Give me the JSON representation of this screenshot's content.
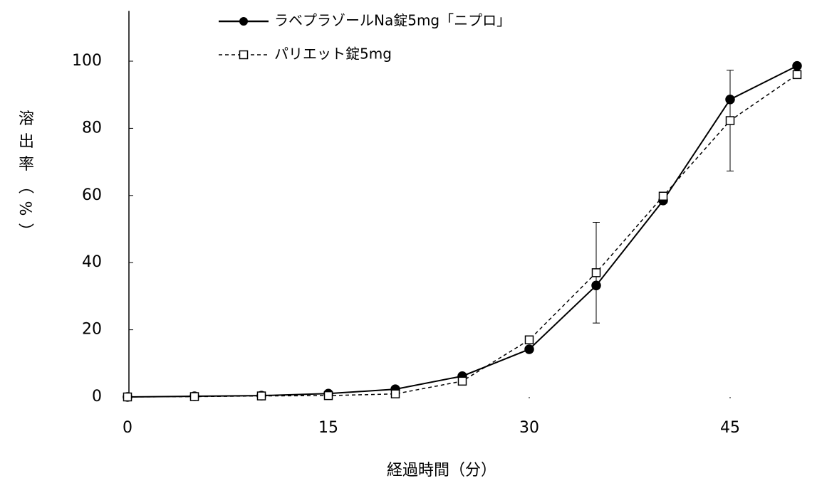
{
  "chart_data": {
    "type": "line",
    "x_label": "経過時間（分）",
    "y_label": "溶出率（%）",
    "x": [
      0,
      5,
      10,
      15,
      20,
      25,
      30,
      35,
      40,
      45,
      50
    ],
    "series": [
      {
        "name": "ラベプラゾールNa錠5mg「ニプロ」",
        "color": "#000000",
        "marker": "circle",
        "dash": false,
        "values": [
          0,
          0.2,
          0.4,
          1,
          2.3,
          6.2,
          14.2,
          33.2,
          58.5,
          88.6,
          98.6
        ]
      },
      {
        "name": "パリエット錠5mg",
        "color": "#000000",
        "marker": "square",
        "dash": true,
        "values": [
          0,
          0.1,
          0.3,
          0.4,
          0.9,
          4.7,
          17,
          37,
          59.8,
          82.3,
          96
        ],
        "errors": [
          null,
          null,
          null,
          null,
          null,
          null,
          null,
          15,
          null,
          15,
          null
        ]
      }
    ],
    "xlim": [
      0,
      52
    ],
    "xticks": [
      0,
      15,
      30,
      45
    ],
    "ylim": [
      0,
      115
    ],
    "yticks": [
      0,
      20,
      40,
      60,
      80,
      100
    ],
    "grid": false,
    "legend": "top"
  }
}
